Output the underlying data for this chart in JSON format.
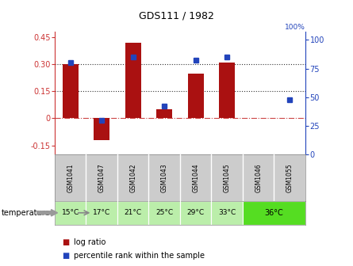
{
  "title": "GDS111 / 1982",
  "samples": [
    "GSM1041",
    "GSM1047",
    "GSM1042",
    "GSM1043",
    "GSM1044",
    "GSM1045",
    "GSM1046",
    "GSM1055"
  ],
  "log_ratios": [
    0.3,
    -0.12,
    0.42,
    0.05,
    0.25,
    0.31,
    0.0,
    null
  ],
  "percentile_ranks": [
    80,
    30,
    85,
    42,
    82,
    85,
    null,
    48
  ],
  "bar_color": "#aa1111",
  "dot_color": "#2244bb",
  "ylim_left": [
    -0.2,
    0.48
  ],
  "ylim_right": [
    0,
    107
  ],
  "yticks_left": [
    -0.15,
    0.0,
    0.15,
    0.3,
    0.45
  ],
  "yticks_right": [
    0,
    25,
    50,
    75,
    100
  ],
  "hlines": [
    0.0,
    0.15,
    0.3
  ],
  "hline_styles": [
    "dashdot",
    "dotted",
    "dotted"
  ],
  "hline_colors": [
    "#cc4444",
    "#333333",
    "#333333"
  ],
  "sample_box_color": "#cccccc",
  "light_green": "#bbeeaa",
  "bright_green": "#55dd22",
  "temp_labels_individual": [
    "15°C",
    "17°C",
    "21°C",
    "25°C",
    "29°C",
    "33°C"
  ],
  "temp_label_merged": "36°C",
  "n_individual_temp": 6,
  "n_merged_temp": 2,
  "background_color": "#ffffff"
}
